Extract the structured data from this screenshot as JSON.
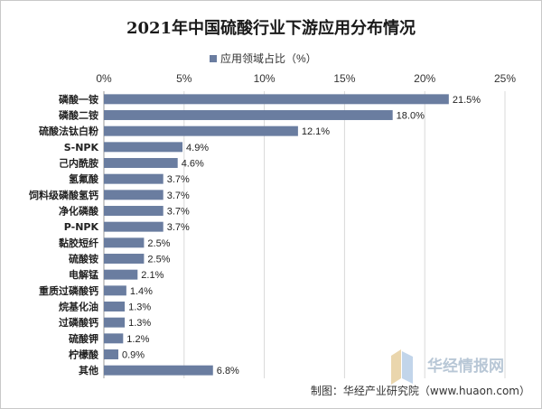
{
  "chart_data": {
    "type": "bar",
    "orientation": "horizontal",
    "title": "2021年中国硫酸行业下游应用分布情况",
    "legend": {
      "label": "应用领域占比（%）",
      "position": "top"
    },
    "xlim": [
      0,
      25
    ],
    "x_ticks": [
      "0%",
      "5%",
      "10%",
      "15%",
      "20%",
      "25%"
    ],
    "x_tick_values": [
      0,
      5,
      10,
      15,
      20,
      25
    ],
    "grid": true,
    "categories": [
      "磷酸一铵",
      "磷酸二铵",
      "硫酸法钛白粉",
      "S-NPK",
      "己内酰胺",
      "氢氟酸",
      "饲料级磷酸氢钙",
      "净化磷酸",
      "P-NPK",
      "黏胶短纤",
      "硫酸铵",
      "电解锰",
      "重质过磷酸钙",
      "烷基化油",
      "过磷酸钙",
      "硫酸钾",
      "柠檬酸",
      "其他"
    ],
    "values": [
      21.5,
      18.0,
      12.1,
      4.9,
      4.6,
      3.7,
      3.7,
      3.7,
      3.7,
      2.5,
      2.5,
      2.1,
      1.4,
      1.3,
      1.3,
      1.2,
      0.9,
      6.8
    ],
    "value_labels": [
      "21.5%",
      "18.0%",
      "12.1%",
      "4.9%",
      "4.6%",
      "3.7%",
      "3.7%",
      "3.7%",
      "3.7%",
      "2.5%",
      "2.5%",
      "2.1%",
      "1.4%",
      "1.3%",
      "1.3%",
      "1.2%",
      "0.9%",
      "6.8%"
    ],
    "bar_color": "#6a7da0"
  },
  "credit": "制图：华经产业研究院（www.huaon.com）",
  "watermark": {
    "name": "华经情报网",
    "url": "www.huaon.com"
  }
}
